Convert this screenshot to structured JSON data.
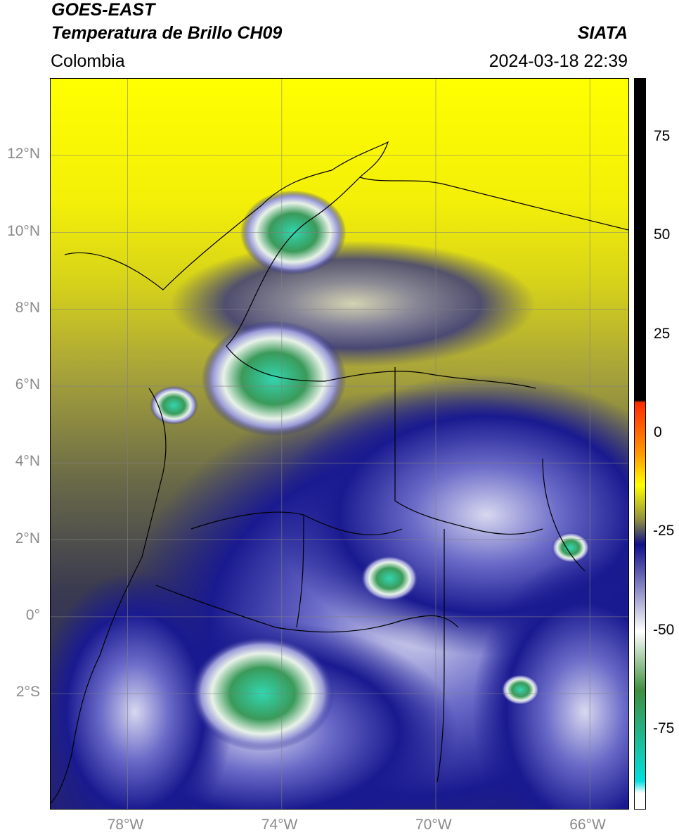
{
  "header": {
    "satellite": "GOES-EAST",
    "product": "Temperatura de Brillo CH09",
    "region": "Colombia",
    "org": "SIATA",
    "datetime": "2024-03-18 22:39"
  },
  "map": {
    "lat_range": [
      -5,
      14
    ],
    "lon_range": [
      -80,
      -65
    ],
    "lat_ticks": [
      "12°N",
      "10°N",
      "8°N",
      "6°N",
      "4°N",
      "2°N",
      "0°",
      "2°S"
    ],
    "lon_ticks": [
      "78°W",
      "74°W",
      "70°W",
      "66°W"
    ],
    "cloud_tops": [
      {
        "lat": 10.0,
        "lon": -73.7,
        "r": 1.1
      },
      {
        "lat": 6.2,
        "lon": -74.2,
        "r": 1.5
      },
      {
        "lat": 5.5,
        "lon": -76.8,
        "r": 0.5
      },
      {
        "lat": -2.0,
        "lon": -74.5,
        "r": 1.5
      },
      {
        "lat": 1.8,
        "lon": -66.5,
        "r": 0.4
      },
      {
        "lat": -1.9,
        "lon": -67.8,
        "r": 0.4
      },
      {
        "lat": 1.0,
        "lon": -71.2,
        "r": 0.6
      }
    ]
  },
  "colorbar": {
    "range": [
      -95,
      90
    ],
    "ticks": [
      "75",
      "50",
      "25",
      "0",
      "-25",
      "-50",
      "-75"
    ],
    "colors": {
      "warm": "#000000",
      "red": "#ff2a00",
      "orange": "#ff9900",
      "yellow": "#ffff00",
      "olive": "#8a8a40",
      "navy": "#10108a",
      "white": "#ffffff",
      "green": "#3f8f3f",
      "cyan": "#00e0e0"
    }
  }
}
